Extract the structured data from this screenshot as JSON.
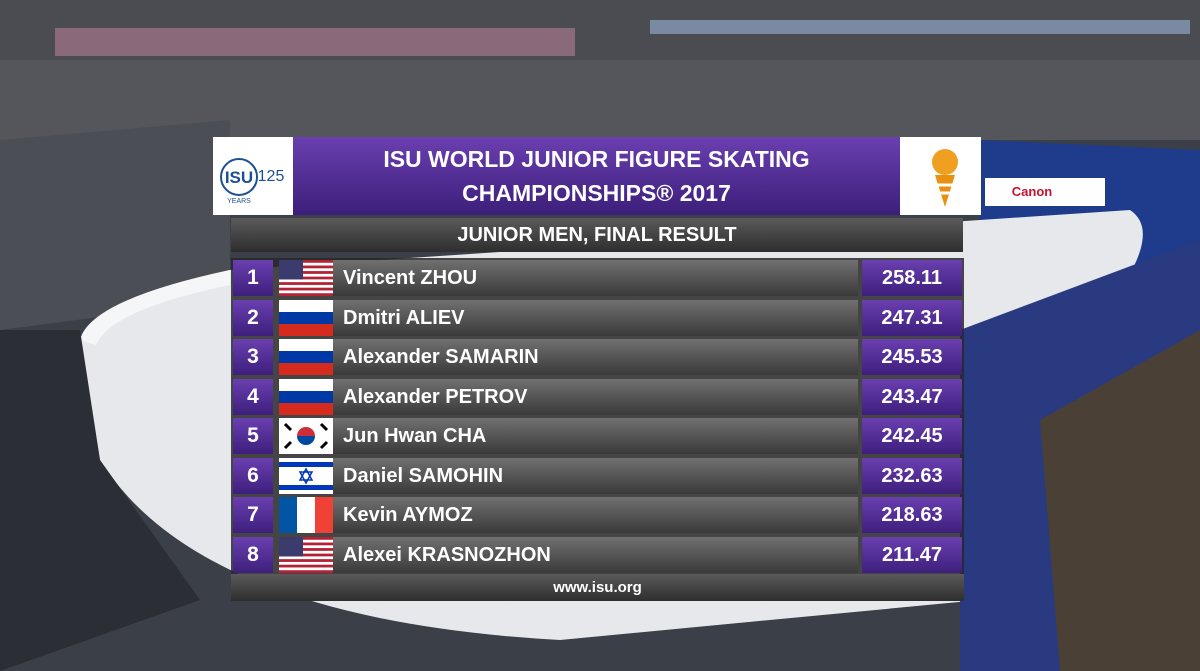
{
  "header": {
    "logo_left": {
      "main": "ISU",
      "number": "125",
      "sub": "YEARS"
    },
    "title_line1": "ISU WORLD JUNIOR FIGURE SKATING",
    "title_line2": "CHAMPIONSHIPS® 2017"
  },
  "subtitle": "JUNIOR MEN, FINAL RESULT",
  "table": {
    "rows": [
      [
        "1",
        "Vincent ZHOU",
        "258.11"
      ],
      [
        "2",
        "Dmitri ALIEV",
        "247.31"
      ],
      [
        "3",
        "Alexander SAMARIN",
        "245.53"
      ],
      [
        "4",
        "Alexander PETROV",
        "243.47"
      ],
      [
        "5",
        "Jun Hwan CHA",
        "242.45"
      ],
      [
        "6",
        "Daniel SAMOHIN",
        "232.63"
      ],
      [
        "7",
        "Kevin AYMOZ",
        "218.63"
      ],
      [
        "8",
        "Alexei KRASNOZHON",
        "211.47"
      ]
    ]
  },
  "footer": "www.isu.org",
  "board": "Canon"
}
